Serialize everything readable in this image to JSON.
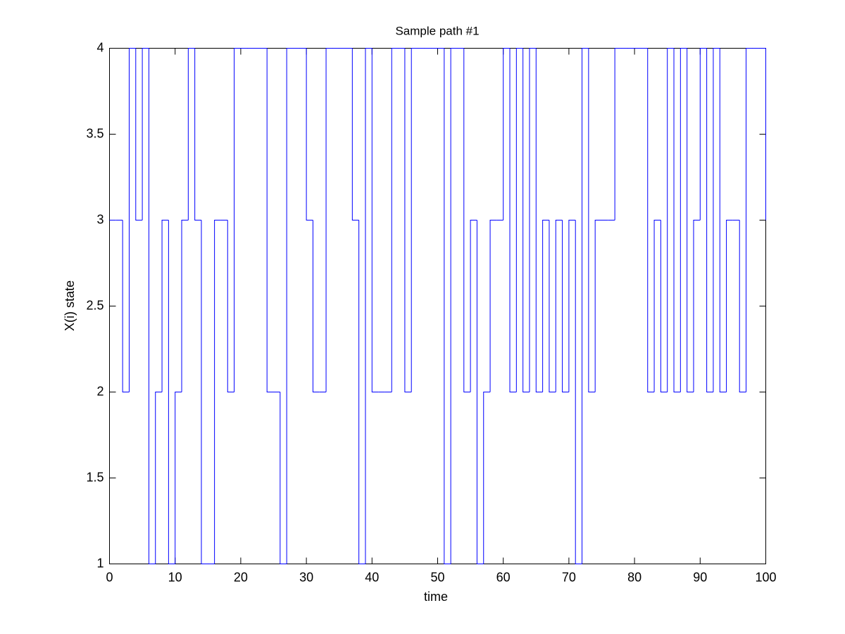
{
  "chart_data": {
    "type": "stairs",
    "title": "Sample path #1",
    "x_label": "time",
    "y_label": "X(i) state",
    "x": [
      0,
      1,
      2,
      3,
      4,
      5,
      6,
      7,
      8,
      9,
      10,
      11,
      12,
      13,
      14,
      15,
      16,
      17,
      18,
      19,
      20,
      21,
      22,
      23,
      24,
      25,
      26,
      27,
      28,
      29,
      30,
      31,
      32,
      33,
      34,
      35,
      36,
      37,
      38,
      39,
      40,
      41,
      42,
      43,
      44,
      45,
      46,
      47,
      48,
      49,
      50,
      51,
      52,
      53,
      54,
      55,
      56,
      57,
      58,
      59,
      60,
      61,
      62,
      63,
      64,
      65,
      66,
      67,
      68,
      69,
      70,
      71,
      72,
      73,
      74,
      75,
      76,
      77,
      78,
      79,
      80,
      81,
      82,
      83,
      84,
      85,
      86,
      87,
      88,
      89,
      90,
      91,
      92,
      93,
      94,
      95,
      96,
      97,
      98,
      99,
      100
    ],
    "values": [
      3,
      3,
      2,
      4,
      3,
      4,
      1,
      2,
      3,
      1,
      2,
      3,
      4,
      3,
      1,
      1,
      3,
      3,
      2,
      4,
      4,
      4,
      4,
      4,
      2,
      2,
      1,
      4,
      4,
      4,
      3,
      2,
      2,
      4,
      4,
      4,
      4,
      3,
      1,
      4,
      2,
      2,
      2,
      4,
      4,
      2,
      4,
      4,
      4,
      4,
      4,
      1,
      4,
      4,
      2,
      3,
      1,
      2,
      3,
      3,
      4,
      2,
      4,
      2,
      4,
      2,
      3,
      2,
      3,
      2,
      3,
      1,
      4,
      2,
      3,
      3,
      3,
      4,
      4,
      4,
      4,
      4,
      2,
      3,
      2,
      4,
      2,
      4,
      2,
      3,
      4,
      2,
      4,
      2,
      3,
      3,
      2,
      4,
      4,
      4,
      3
    ],
    "color": "#0000ff",
    "xlim": [
      0,
      100
    ],
    "xticks": [
      0,
      10,
      20,
      30,
      40,
      50,
      60,
      70,
      80,
      90,
      100
    ],
    "ylim": [
      1,
      4
    ],
    "yticks": [
      1,
      1.5,
      2,
      2.5,
      3,
      3.5,
      4
    ],
    "grid": false
  }
}
